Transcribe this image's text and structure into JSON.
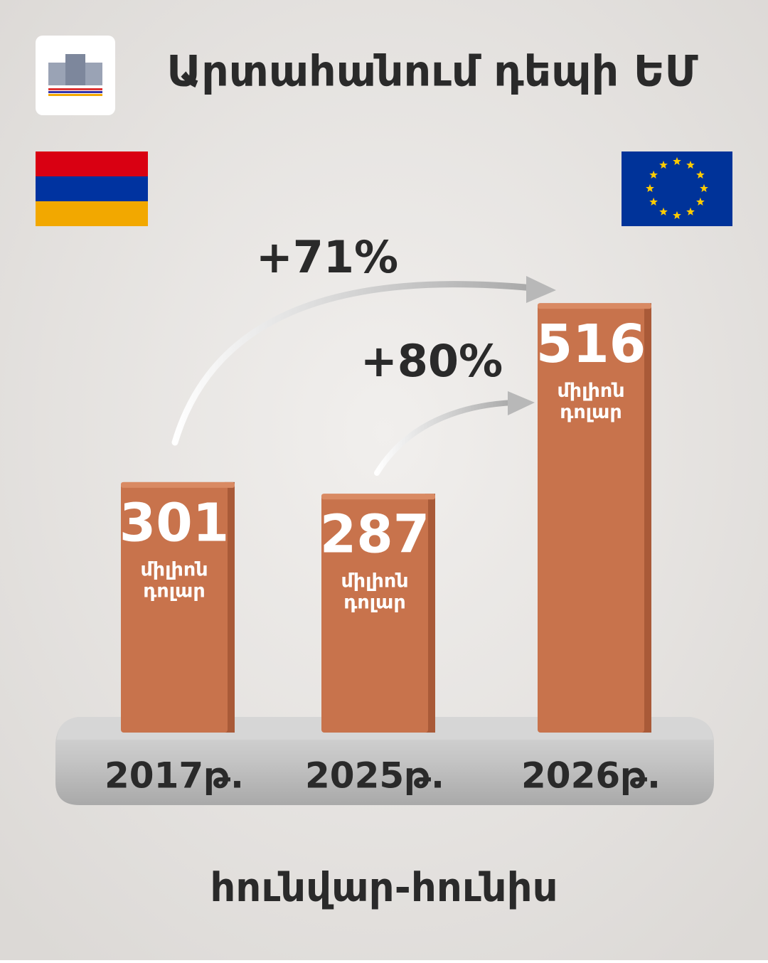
{
  "chart_data": {
    "type": "bar",
    "title": "Արտահանում դեպի ԵՄ",
    "subtitle": "հունվար-հունիս",
    "categories": [
      "2017թ.",
      "2025թ.",
      "2026թ."
    ],
    "values": [
      301,
      287,
      516
    ],
    "unit_lines": [
      "միլիոն",
      "դոլար"
    ],
    "color": "#c8734c",
    "annotations": [
      "+71%",
      "+80%"
    ]
  }
}
